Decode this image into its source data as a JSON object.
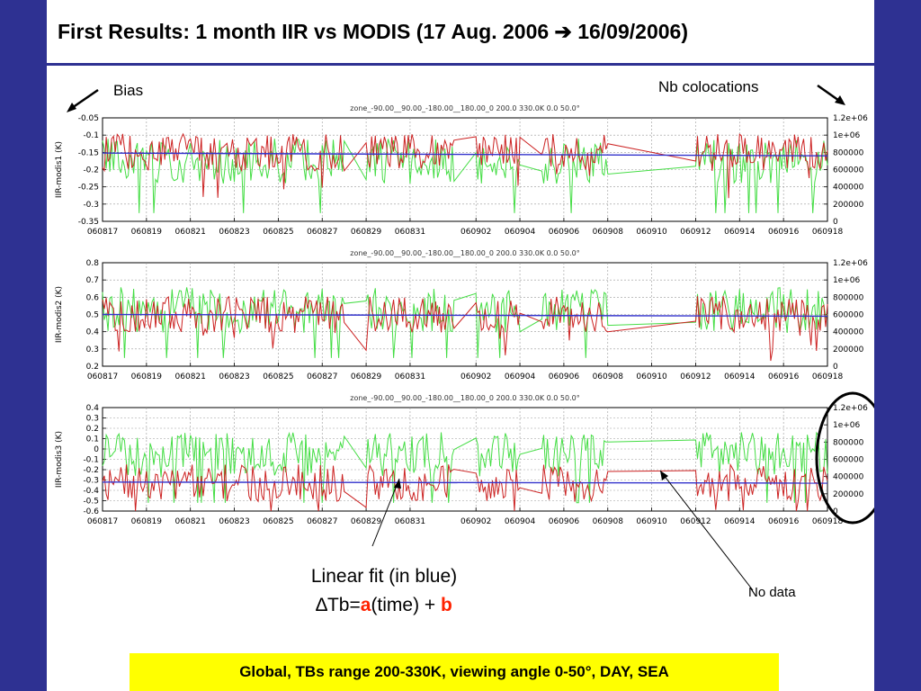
{
  "slide": {
    "title": "First Results: 1 month IIR vs MODIS (17 Aug. 2006 ➔ 16/09/2006)",
    "bias_label": "Bias",
    "nb_label": "Nb colocations",
    "linear_fit": {
      "line1": "Linear fit (in blue)",
      "delta": "∆Tb=",
      "a": "a",
      "mid": "(time) + ",
      "b": "b"
    },
    "no_data": "No data",
    "footer": "Global,   TBs range 200-330K,   viewing angle 0-50°,   DAY,   SEA"
  },
  "colors": {
    "background": "#2e3192",
    "bias_series": "#cc2222",
    "nb_series": "#44dd44",
    "fit_line": "#3333cc",
    "footer_bg": "#ffff00",
    "highlight": "#ff2200"
  },
  "chart_data": [
    {
      "type": "line",
      "panel_title": "zone_-90.00__90.00_-180.00__180.00_0   200.0 330.0K    0.0 50.0°",
      "ylabel": "IIR-modis1 (K)",
      "ylim": [
        -0.35,
        -0.05
      ],
      "y_ticks": [
        "-0.05",
        "-0.1",
        "-0.15",
        "-0.2",
        "-0.25",
        "-0.3",
        "-0.35"
      ],
      "y2_ticks": [
        "1.2e+06",
        "1e+06",
        "800000",
        "600000",
        "400000",
        "200000",
        "0"
      ],
      "y2lim": [
        0,
        1200000
      ],
      "x_ticks": [
        "060817",
        "060819",
        "060821",
        "060823",
        "060825",
        "060827",
        "060829",
        "060831",
        "060902",
        "060904",
        "060906",
        "060908",
        "060910",
        "060912",
        "060914",
        "060916",
        "060918"
      ],
      "xlim": [
        "060817",
        "060918"
      ],
      "no_data_gaps": [
        [
          "060828",
          "060829"
        ],
        [
          "060901",
          "060902"
        ],
        [
          "060904",
          "060905"
        ],
        [
          "060908",
          "060912"
        ]
      ],
      "bias_mean": -0.15,
      "fit": {
        "start": -0.152,
        "end": -0.16
      },
      "nb_mean": 700000
    },
    {
      "type": "line",
      "panel_title": "zone_-90.00__90.00_-180.00__180.00_0   200.0 330.0K    0.0 50.0°",
      "ylabel": "IIR-modis2 (K)",
      "ylim": [
        0.2,
        0.8
      ],
      "y_ticks": [
        "0.8",
        "0.7",
        "0.6",
        "0.5",
        "0.4",
        "0.3",
        "0.2"
      ],
      "y2_ticks": [
        "1.2e+06",
        "1e+06",
        "800000",
        "600000",
        "400000",
        "200000",
        "0"
      ],
      "y2lim": [
        0,
        1200000
      ],
      "x_ticks": [
        "060817",
        "060819",
        "060821",
        "060823",
        "060825",
        "060827",
        "060829",
        "060831",
        "060902",
        "060904",
        "060906",
        "060908",
        "060910",
        "060912",
        "060914",
        "060916",
        "060918"
      ],
      "xlim": [
        "060817",
        "060918"
      ],
      "no_data_gaps": [
        [
          "060828",
          "060829"
        ],
        [
          "060901",
          "060902"
        ],
        [
          "060904",
          "060905"
        ],
        [
          "060908",
          "060912"
        ]
      ],
      "bias_mean": 0.5,
      "fit": {
        "start": 0.5,
        "end": 0.49
      },
      "nb_mean": 650000
    },
    {
      "type": "line",
      "panel_title": "zone_-90.00__90.00_-180.00__180.00_0   200.0 330.0K    0.0 50.0°",
      "ylabel": "IIR-modis3 (K)",
      "ylim": [
        -0.6,
        0.4
      ],
      "y_ticks": [
        "0.4",
        "0.3",
        "0.2",
        "0.1",
        "0",
        "-0.1",
        "-0.2",
        "-0.3",
        "-0.4",
        "-0.5",
        "-0.6"
      ],
      "y2_ticks": [
        "1.2e+06",
        "1e+06",
        "800000",
        "600000",
        "400000",
        "200000",
        "0"
      ],
      "y2lim": [
        0,
        1200000
      ],
      "x_ticks": [
        "060817",
        "060819",
        "060821",
        "060823",
        "060825",
        "060827",
        "060829",
        "060831",
        "060902",
        "060904",
        "060906",
        "060908",
        "060910",
        "060912",
        "060914",
        "060916",
        "060918"
      ],
      "xlim": [
        "060817",
        "060918"
      ],
      "no_data_gaps": [
        [
          "060828",
          "060829"
        ],
        [
          "060901",
          "060902"
        ],
        [
          "060904",
          "060905"
        ],
        [
          "060908",
          "060912"
        ]
      ],
      "bias_mean": -0.33,
      "fit": {
        "start": -0.32,
        "end": -0.33
      },
      "nb_mean": 650000
    }
  ]
}
